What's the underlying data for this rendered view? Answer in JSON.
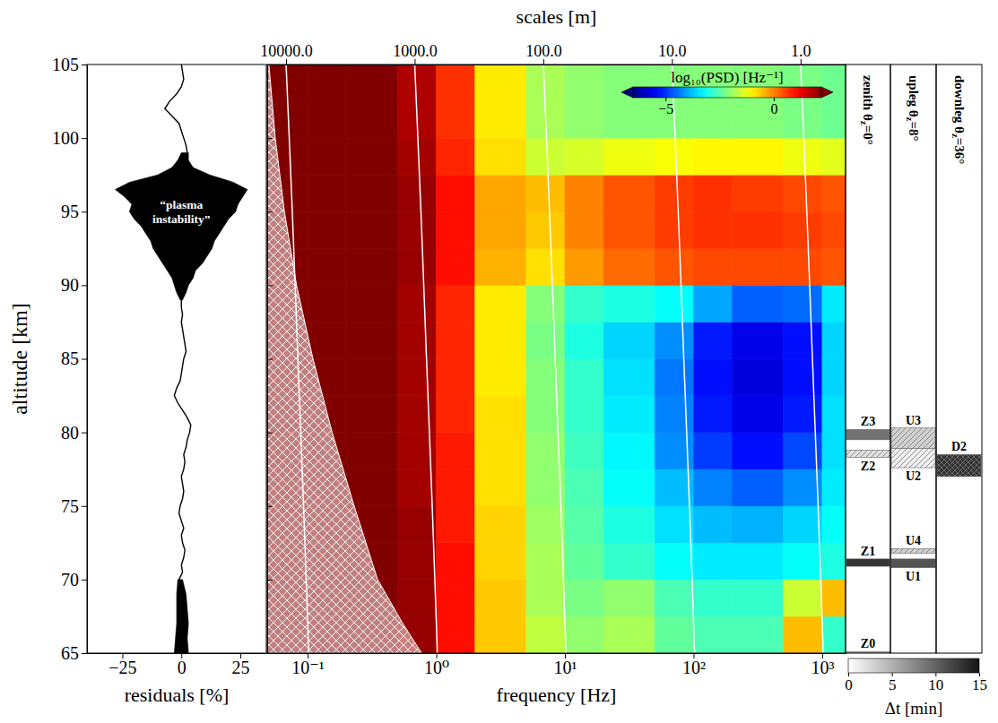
{
  "chart_data": [
    {
      "type": "line",
      "xlabel": "residuals [%]",
      "ylabel": "altitude [km]",
      "xlim": [
        -40,
        36
      ],
      "xticks": [
        {
          "value": -25,
          "label": "−25"
        },
        0,
        25
      ],
      "ylim": [
        65,
        105
      ],
      "yticks": [
        65,
        70,
        75,
        80,
        85,
        90,
        95,
        100,
        105
      ],
      "series": [
        {
          "type": "area",
          "color": "#000000",
          "y": [
            65,
            66,
            67,
            68,
            69,
            70,
            null,
            89,
            89.5,
            90,
            90.5,
            91,
            91.5,
            92,
            92.5,
            93,
            93.5,
            94,
            94.5,
            95,
            95.5,
            96,
            96.5,
            97,
            97.5,
            98,
            98.5,
            99
          ],
          "low": [
            -3,
            -2.5,
            -2,
            -2,
            -2,
            -1.5,
            null,
            -0.5,
            -2,
            -3,
            -4,
            -6,
            -8,
            -10,
            -12,
            -13,
            -15,
            -17,
            -20,
            -22,
            -21,
            -24,
            -28,
            -22,
            -10,
            -4,
            -1.5,
            0
          ],
          "high": [
            3,
            2.5,
            3,
            2.5,
            2,
            0.5,
            null,
            0.5,
            2,
            3,
            5,
            6,
            9,
            11,
            13,
            14,
            16,
            18,
            20,
            23,
            24,
            26,
            28,
            22,
            12,
            5,
            3,
            3
          ]
        },
        {
          "type": "line",
          "color": "#000000",
          "y": [
            65,
            66,
            67,
            68,
            69,
            69.5,
            70,
            70.5,
            71,
            71.5,
            72,
            72.5,
            73,
            73.5,
            74,
            74.5,
            75,
            75.5,
            76,
            76.5,
            77,
            77.5,
            78,
            78.5,
            79,
            79.5,
            80,
            80.5,
            81,
            81.5,
            82,
            82.5,
            83,
            83.5,
            84,
            84.5,
            85,
            85.5,
            86,
            86.5,
            87,
            87.5,
            88,
            88.5,
            89,
            90,
            92,
            94,
            96,
            98,
            98.5,
            99,
            99.5,
            100,
            100.5,
            101,
            101.5,
            102,
            102.5,
            103,
            103.5,
            104,
            104.5,
            105
          ],
          "x": [
            0,
            0.5,
            1,
            0.5,
            0,
            -0.5,
            -1,
            0.5,
            0,
            1,
            1.5,
            0.5,
            0,
            1,
            0,
            -1,
            -0.5,
            0.5,
            1,
            0.5,
            0,
            1,
            1.5,
            1,
            2,
            2.5,
            3.5,
            4,
            2.5,
            0.5,
            -1.5,
            -3,
            -2,
            -0.5,
            0,
            0.5,
            1,
            2,
            1.5,
            1,
            0.5,
            0,
            0.5,
            0,
            0,
            0,
            0,
            0,
            0,
            0.5,
            1.5,
            2.5,
            2,
            1,
            0,
            -1,
            -4,
            -7,
            -5,
            -2,
            0,
            1,
            0.5,
            0
          ]
        }
      ],
      "annotations": [
        {
          "text": "“plasma instability”",
          "x": 0,
          "y": 95.0
        }
      ]
    },
    {
      "type": "heatmap",
      "xlabel": "frequency [Hz]",
      "x2label": "scales [m]",
      "log": "x",
      "xlim": [
        0.0485,
        1520
      ],
      "xticks": [
        {
          "value": 0.1,
          "label": "10⁻¹"
        },
        {
          "value": 1,
          "label": "10⁰"
        },
        {
          "value": 10,
          "label": "10¹"
        },
        {
          "value": 100,
          "label": "10²"
        },
        {
          "value": 1000,
          "label": "10³"
        }
      ],
      "x2lim": [
        14000,
        0.447
      ],
      "x2ticks": [
        {
          "value": 10000,
          "label": "10000.0"
        },
        {
          "value": 1000,
          "label": "1000.0"
        },
        {
          "value": 100,
          "label": "100.0"
        },
        {
          "value": 10,
          "label": "10.0"
        },
        {
          "value": 1,
          "label": "1.0"
        }
      ],
      "ylim": [
        65,
        105
      ],
      "yticks": [
        65,
        70,
        75,
        80,
        85,
        90,
        95,
        100,
        105
      ],
      "tick_labels": "x",
      "x_edges": [
        0.0485,
        0.1,
        0.2,
        0.5,
        1,
        2,
        5,
        10,
        20,
        50,
        100,
        200,
        500,
        1000,
        1520
      ],
      "y_edges": [
        65,
        67.5,
        70,
        72.5,
        75,
        77.5,
        80,
        82.5,
        85,
        87.5,
        90,
        92.5,
        95,
        97.5,
        100,
        102.5,
        105
      ],
      "cells": [
        [
          2.5,
          2.5,
          2.5,
          2.0,
          1.0,
          -0.6,
          -1.6,
          -2.0,
          -1.8,
          -2.4,
          -2.6,
          -2.6,
          -0.5,
          -2.8
        ],
        [
          2.5,
          2.5,
          2.5,
          2.0,
          1.0,
          -0.6,
          -1.8,
          -2.2,
          -2.0,
          -2.6,
          -2.8,
          -2.8,
          -1.5,
          -0.5
        ],
        [
          2.5,
          2.5,
          2.5,
          2.0,
          1.0,
          -0.7,
          -1.8,
          -2.4,
          -2.8,
          -3.2,
          -3.4,
          -3.4,
          -3.2,
          -3.0
        ],
        [
          2.5,
          2.5,
          2.5,
          2.0,
          0.9,
          -0.7,
          -1.9,
          -2.5,
          -3.0,
          -3.5,
          -3.8,
          -3.9,
          -3.6,
          -3.2
        ],
        [
          2.5,
          2.5,
          2.5,
          1.9,
          0.9,
          -0.8,
          -2.0,
          -2.6,
          -3.2,
          -3.8,
          -4.3,
          -4.6,
          -4.2,
          -3.4
        ],
        [
          2.5,
          2.5,
          2.5,
          1.9,
          0.9,
          -0.8,
          -2.0,
          -2.7,
          -3.3,
          -4.2,
          -4.9,
          -5.3,
          -4.8,
          -3.5
        ],
        [
          2.5,
          2.5,
          2.5,
          1.9,
          0.8,
          -0.8,
          -2.1,
          -2.8,
          -3.4,
          -4.3,
          -5.2,
          -5.6,
          -5.2,
          -3.5
        ],
        [
          2.5,
          2.5,
          2.5,
          1.9,
          0.8,
          -0.9,
          -2.1,
          -2.8,
          -3.5,
          -4.4,
          -5.3,
          -5.7,
          -5.3,
          -3.6
        ],
        [
          2.5,
          2.5,
          2.5,
          1.9,
          0.8,
          -0.9,
          -2.2,
          -3.0,
          -3.6,
          -4.2,
          -5.2,
          -5.6,
          -5.3,
          -3.6
        ],
        [
          2.5,
          2.5,
          2.5,
          1.9,
          0.8,
          -0.9,
          -2.1,
          -2.8,
          -3.0,
          -3.2,
          -4.0,
          -4.6,
          -4.5,
          -3.4
        ],
        [
          2.5,
          2.5,
          2.5,
          2.0,
          1.0,
          -0.4,
          -0.8,
          -0.2,
          0.2,
          0.4,
          0.5,
          0.5,
          0.5,
          0.4
        ],
        [
          2.5,
          2.5,
          2.5,
          2.0,
          1.0,
          -0.3,
          -0.6,
          0.0,
          0.4,
          0.6,
          0.7,
          0.7,
          0.6,
          0.5
        ],
        [
          2.5,
          2.5,
          2.5,
          2.0,
          1.0,
          -0.3,
          -0.5,
          0.0,
          0.4,
          0.6,
          0.7,
          0.6,
          0.5,
          0.4
        ],
        [
          2.5,
          2.5,
          2.5,
          1.9,
          0.8,
          -0.8,
          -1.5,
          -1.4,
          -1.2,
          -1.1,
          -1.0,
          -1.0,
          -1.2,
          -1.3
        ],
        [
          2.5,
          2.5,
          2.5,
          1.8,
          0.7,
          -0.9,
          -1.8,
          -2.0,
          -2.1,
          -2.1,
          -2.1,
          -2.1,
          -2.2,
          -2.3
        ],
        [
          2.5,
          2.5,
          2.5,
          1.8,
          0.7,
          -0.9,
          -1.8,
          -2.0,
          -2.1,
          -2.1,
          -2.1,
          -2.1,
          -2.2,
          -2.3
        ]
      ],
      "colorbar": {
        "label": "log₁₀(PSD) [Hz⁻¹]",
        "range": [
          -6.5,
          2.2
        ],
        "ticks": [
          {
            "value": -5,
            "label": "−5"
          },
          0
        ]
      },
      "scale_lines": {
        "altitude": [
          65,
          75,
          85,
          95,
          105
        ],
        "frequency": [
          [
            0.102,
            0.093,
            0.084,
            0.076,
            0.068
          ],
          [
            1.02,
            0.93,
            0.84,
            0.76,
            0.68
          ],
          [
            10.2,
            9.3,
            8.4,
            7.6,
            6.8
          ],
          [
            102,
            93,
            84,
            76,
            68
          ],
          [
            1020,
            930,
            840,
            760,
            680
          ]
        ]
      },
      "cutoff": {
        "altitude": [
          65,
          67,
          70,
          75,
          80,
          85,
          90,
          95,
          100,
          105
        ],
        "frequency": [
          0.77,
          0.55,
          0.35,
          0.23,
          0.155,
          0.11,
          0.082,
          0.066,
          0.056,
          0.05
        ]
      }
    },
    {
      "type": "range_bars",
      "columns": [
        "zenith θz=0°",
        "upleg θz=8°",
        "downleg θz=36°"
      ],
      "ylim": [
        65,
        105
      ],
      "items": [
        {
          "label": "Z0",
          "column": 0,
          "low": 64.6,
          "high": 65.1,
          "dt": 6,
          "marker": "solid"
        },
        {
          "label": "Z1",
          "column": 0,
          "low": 70.9,
          "high": 71.4,
          "dt": 13,
          "marker": "solid"
        },
        {
          "label": "Z2",
          "column": 0,
          "low": 78.3,
          "high": 78.8,
          "dt": 2,
          "marker": "hatch"
        },
        {
          "label": "Z3",
          "column": 0,
          "low": 79.5,
          "high": 80.2,
          "dt": 9,
          "marker": "solid"
        },
        {
          "label": "U1",
          "column": 1,
          "low": 70.8,
          "high": 71.4,
          "dt": 11,
          "marker": "solid"
        },
        {
          "label": "U2",
          "column": 1,
          "low": 77.6,
          "high": 78.9,
          "dt": 1,
          "marker": "hatch"
        },
        {
          "label": "U3",
          "column": 1,
          "low": 78.9,
          "high": 80.3,
          "dt": 3,
          "marker": "hatch"
        },
        {
          "label": "U4",
          "column": 1,
          "low": 71.8,
          "high": 72.1,
          "dt": 3,
          "marker": "hatch"
        },
        {
          "label": "D2",
          "column": 2,
          "low": 77.0,
          "high": 78.5,
          "dt": 13,
          "marker": "crosshatch"
        }
      ],
      "colorbar": {
        "label": "Δt [min]",
        "range": [
          0,
          15
        ],
        "ticks": [
          0,
          5,
          10,
          15
        ]
      }
    }
  ]
}
